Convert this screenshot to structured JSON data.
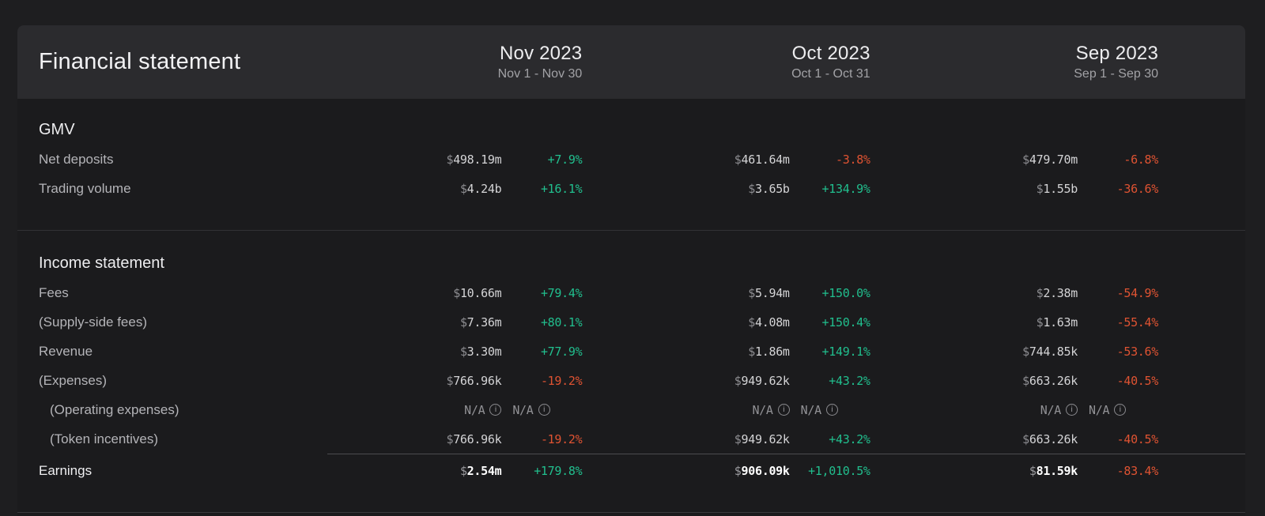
{
  "header": {
    "title": "Financial statement",
    "columns": [
      {
        "month": "Nov 2023",
        "range": "Nov 1 - Nov 30"
      },
      {
        "month": "Oct 2023",
        "range": "Oct 1 - Oct 31"
      },
      {
        "month": "Sep 2023",
        "range": "Sep 1 - Sep 30"
      }
    ]
  },
  "currency_symbol": "$",
  "na_label": "N/A",
  "icons": {
    "info": "i"
  },
  "colors": {
    "positive": "#21bf8e",
    "negative": "#df5332",
    "na": "#919195"
  },
  "sections": [
    {
      "title": "GMV",
      "rows": [
        {
          "label": "Net deposits",
          "indent": false,
          "emphasis": false,
          "divider_above": false,
          "values": [
            {
              "amount": "498.19m",
              "pct": "+7.9%",
              "trend": "up"
            },
            {
              "amount": "461.64m",
              "pct": "-3.8%",
              "trend": "down"
            },
            {
              "amount": "479.70m",
              "pct": "-6.8%",
              "trend": "down"
            }
          ]
        },
        {
          "label": "Trading volume",
          "indent": false,
          "emphasis": false,
          "divider_above": false,
          "values": [
            {
              "amount": "4.24b",
              "pct": "+16.1%",
              "trend": "up"
            },
            {
              "amount": "3.65b",
              "pct": "+134.9%",
              "trend": "up"
            },
            {
              "amount": "1.55b",
              "pct": "-36.6%",
              "trend": "down"
            }
          ]
        }
      ]
    },
    {
      "title": "Income statement",
      "rows": [
        {
          "label": "Fees",
          "indent": false,
          "emphasis": false,
          "divider_above": false,
          "values": [
            {
              "amount": "10.66m",
              "pct": "+79.4%",
              "trend": "up"
            },
            {
              "amount": "5.94m",
              "pct": "+150.0%",
              "trend": "up"
            },
            {
              "amount": "2.38m",
              "pct": "-54.9%",
              "trend": "down"
            }
          ]
        },
        {
          "label": "(Supply-side fees)",
          "indent": false,
          "emphasis": false,
          "divider_above": false,
          "values": [
            {
              "amount": "7.36m",
              "pct": "+80.1%",
              "trend": "up"
            },
            {
              "amount": "4.08m",
              "pct": "+150.4%",
              "trend": "up"
            },
            {
              "amount": "1.63m",
              "pct": "-55.4%",
              "trend": "down"
            }
          ]
        },
        {
          "label": "Revenue",
          "indent": false,
          "emphasis": false,
          "divider_above": false,
          "values": [
            {
              "amount": "3.30m",
              "pct": "+77.9%",
              "trend": "up"
            },
            {
              "amount": "1.86m",
              "pct": "+149.1%",
              "trend": "up"
            },
            {
              "amount": "744.85k",
              "pct": "-53.6%",
              "trend": "down"
            }
          ]
        },
        {
          "label": "(Expenses)",
          "indent": false,
          "emphasis": false,
          "divider_above": false,
          "values": [
            {
              "amount": "766.96k",
              "pct": "-19.2%",
              "trend": "down"
            },
            {
              "amount": "949.62k",
              "pct": "+43.2%",
              "trend": "up"
            },
            {
              "amount": "663.26k",
              "pct": "-40.5%",
              "trend": "down"
            }
          ]
        },
        {
          "label": "(Operating expenses)",
          "indent": true,
          "emphasis": false,
          "divider_above": false,
          "values": [
            {
              "na": true
            },
            {
              "na": true
            },
            {
              "na": true
            }
          ]
        },
        {
          "label": "(Token incentives)",
          "indent": true,
          "emphasis": false,
          "divider_above": false,
          "values": [
            {
              "amount": "766.96k",
              "pct": "-19.2%",
              "trend": "down"
            },
            {
              "amount": "949.62k",
              "pct": "+43.2%",
              "trend": "up"
            },
            {
              "amount": "663.26k",
              "pct": "-40.5%",
              "trend": "down"
            }
          ]
        },
        {
          "label": "Earnings",
          "indent": false,
          "emphasis": true,
          "divider_above": true,
          "values": [
            {
              "amount": "2.54m",
              "pct": "+179.8%",
              "trend": "up"
            },
            {
              "amount": "906.09k",
              "pct": "+1,010.5%",
              "trend": "up"
            },
            {
              "amount": "81.59k",
              "pct": "-83.4%",
              "trend": "down"
            }
          ]
        }
      ]
    }
  ]
}
